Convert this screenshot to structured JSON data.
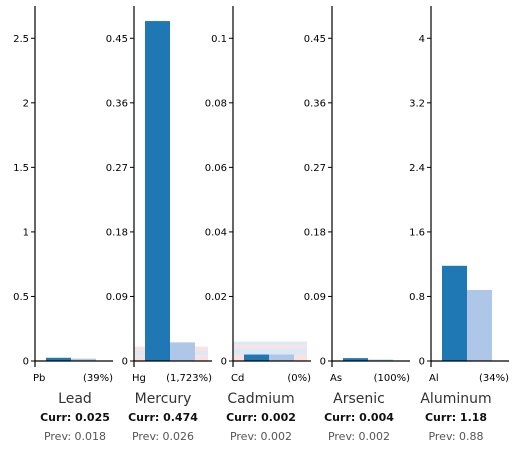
{
  "colors": {
    "current": "#1f77b4",
    "previous": "#aec7e8",
    "band_blue": "#dbe9f5",
    "band_red": "#fbe1e1",
    "axis": "#000000"
  },
  "chart_data": [
    {
      "type": "bar",
      "name": "Lead",
      "symbol": "Pb",
      "change_label": "(39%)",
      "curr_label": "Curr: 0.025",
      "prev_label": "Prev: 0.018",
      "current": 0.025,
      "previous": 0.018,
      "ylim": [
        0,
        2.75
      ],
      "ticks": [
        0,
        0.5,
        1,
        1.5,
        2,
        2.5
      ],
      "tick_labels": [
        "0",
        "0.5",
        "1",
        "1.5",
        "2",
        "2.5"
      ],
      "bands": []
    },
    {
      "type": "bar",
      "name": "Mercury",
      "symbol": "Hg",
      "change_label": "(1,723%)",
      "curr_label": "Curr: 0.474",
      "prev_label": "Prev: 0.026",
      "current": 0.474,
      "previous": 0.026,
      "ylim": [
        0,
        0.495
      ],
      "ticks": [
        0,
        0.09,
        0.18,
        0.27,
        0.36,
        0.45
      ],
      "tick_labels": [
        "0",
        "0.09",
        "0.18",
        "0.27",
        "0.36",
        "0.45"
      ],
      "bands": [
        {
          "color": "band_red",
          "from": 0,
          "to": 0.008
        },
        {
          "color": "band_blue",
          "from": 0.008,
          "to": 0.014
        },
        {
          "color": "band_red",
          "from": 0.014,
          "to": 0.02
        }
      ]
    },
    {
      "type": "bar",
      "name": "Cadmium",
      "symbol": "Cd",
      "change_label": "(0%)",
      "curr_label": "Curr: 0.002",
      "prev_label": "Prev: 0.002",
      "current": 0.002,
      "previous": 0.002,
      "ylim": [
        0,
        0.11
      ],
      "ticks": [
        0,
        0.02,
        0.04,
        0.06,
        0.08,
        0.1
      ],
      "tick_labels": [
        "0",
        "0.02",
        "0.04",
        "0.06",
        "0.08",
        "0.1"
      ],
      "bands": [
        {
          "color": "band_red",
          "from": 0,
          "to": 0.002
        },
        {
          "color": "band_blue",
          "from": 0.002,
          "to": 0.004
        },
        {
          "color": "band_red",
          "from": 0.004,
          "to": 0.005
        },
        {
          "color": "band_blue",
          "from": 0.005,
          "to": 0.006
        }
      ]
    },
    {
      "type": "bar",
      "name": "Arsenic",
      "symbol": "As",
      "change_label": "(100%)",
      "curr_label": "Curr: 0.004",
      "prev_label": "Prev: 0.002",
      "current": 0.004,
      "previous": 0.002,
      "ylim": [
        0,
        0.495
      ],
      "ticks": [
        0,
        0.09,
        0.18,
        0.27,
        0.36,
        0.45
      ],
      "tick_labels": [
        "0",
        "0.09",
        "0.18",
        "0.27",
        "0.36",
        "0.45"
      ],
      "bands": []
    },
    {
      "type": "bar",
      "name": "Aluminum",
      "symbol": "Al",
      "change_label": "(34%)",
      "curr_label": "Curr: 1.18",
      "prev_label": "Prev: 0.88",
      "current": 1.18,
      "previous": 0.88,
      "ylim": [
        0,
        4.4
      ],
      "ticks": [
        0,
        0.8,
        1.6,
        2.4,
        3.2,
        4
      ],
      "tick_labels": [
        "0",
        "0.8",
        "1.6",
        "2.4",
        "3.2",
        "4"
      ],
      "bands": []
    }
  ]
}
